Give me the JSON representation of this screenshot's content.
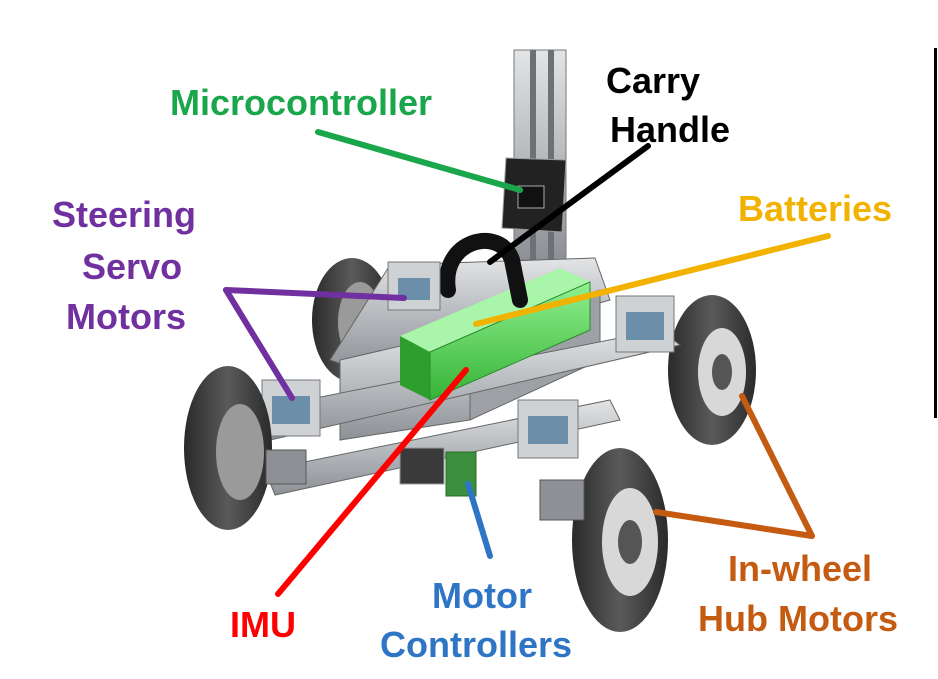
{
  "labels": {
    "microcontroller": "Microcontroller",
    "carry_handle_line1": "Carry",
    "carry_handle_line2": "Handle",
    "batteries": "Batteries",
    "steering_line1": "Steering",
    "steering_line2": "Servo",
    "steering_line3": "Motors",
    "imu": "IMU",
    "motor_controllers_line1": "Motor",
    "motor_controllers_line2": "Controllers",
    "hub_motors_line1": "In-wheel",
    "hub_motors_line2": "Hub Motors"
  },
  "colors": {
    "microcontroller": "#1aa64a",
    "carry_handle": "#000000",
    "batteries": "#f2b200",
    "steering": "#7030a0",
    "imu": "#ff0000",
    "motor_controllers": "#2e75c6",
    "hub_motors": "#c55a11",
    "battery_pack": "#5fd35f",
    "frame": "#b9bcbf",
    "tire": "#3a3a3a"
  }
}
